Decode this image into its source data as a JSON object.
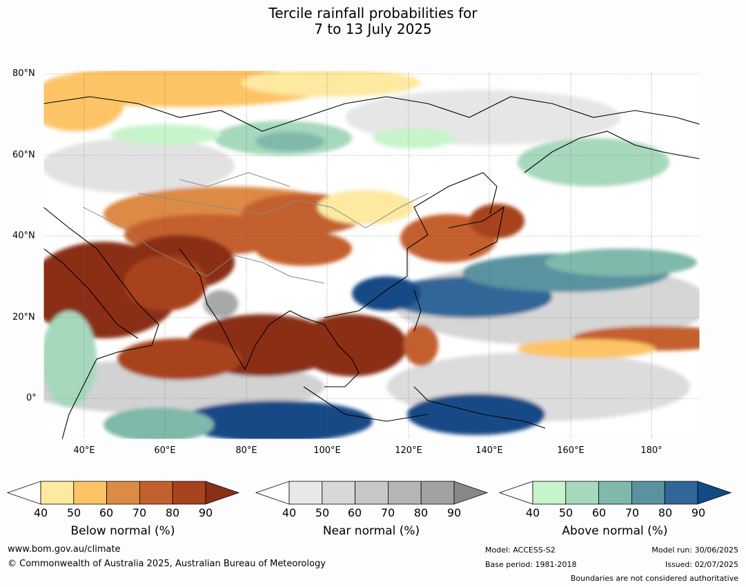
{
  "title": {
    "line1": "Tercile rainfall probabilities for",
    "line2": "7 to 13 July 2025"
  },
  "map": {
    "lat_labels": [
      "80°N",
      "60°N",
      "40°N",
      "20°N",
      "0°"
    ],
    "lon_labels": [
      "40°E",
      "60°E",
      "80°E",
      "100°E",
      "120°E",
      "140°E",
      "160°E",
      "180°"
    ]
  },
  "colorbars": [
    {
      "label": "Below normal (%)",
      "ticks": [
        "40",
        "50",
        "60",
        "70",
        "80",
        "90"
      ],
      "colors": [
        "#ffffff",
        "#fde9a0",
        "#fdc466",
        "#dd8a44",
        "#c4602e",
        "#a8431f",
        "#8a2f18"
      ]
    },
    {
      "label": "Near normal (%)",
      "ticks": [
        "40",
        "50",
        "60",
        "70",
        "80",
        "90"
      ],
      "colors": [
        "#ffffff",
        "#e8e8e8",
        "#d8d8d8",
        "#c8c8c8",
        "#b5b5b5",
        "#a2a2a2",
        "#888888"
      ]
    },
    {
      "label": "Above normal (%)",
      "ticks": [
        "40",
        "50",
        "60",
        "70",
        "80",
        "90"
      ],
      "colors": [
        "#ffffff",
        "#c8f4cc",
        "#a6d8bc",
        "#80b8ac",
        "#5a92a0",
        "#316698",
        "#134a86"
      ]
    }
  ],
  "footer": {
    "url": "www.bom.gov.au/climate",
    "copyright": "© Commonwealth of Australia 2025, Australian Bureau of Meteorology",
    "model": "Model: ACCESS-S2",
    "base_period": "Base period: 1981-2018",
    "model_run": "Model run: 30/06/2025",
    "issued": "Issued: 02/07/2025",
    "disclaimer": "Boundaries are not considered authoritative"
  }
}
